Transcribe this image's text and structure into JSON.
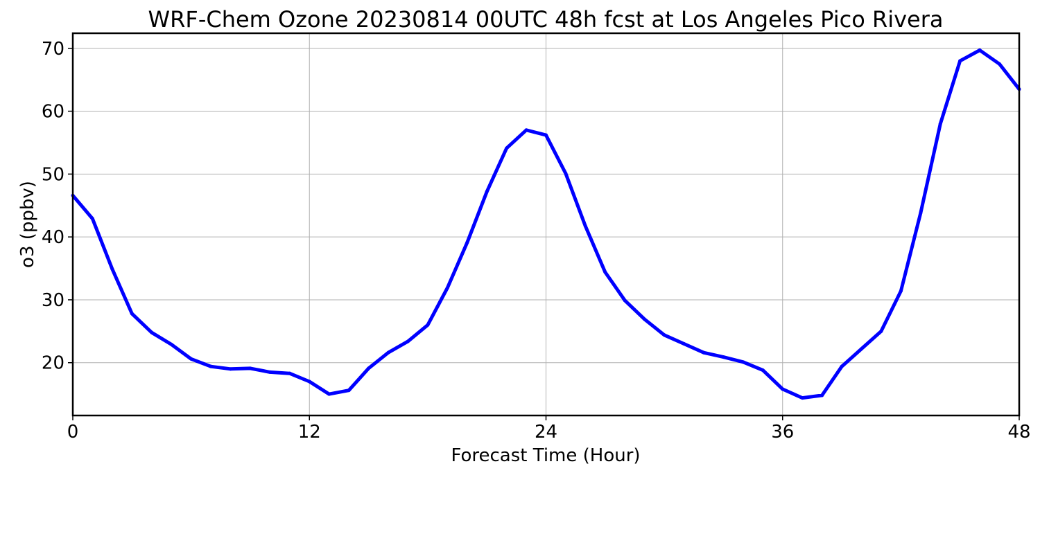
{
  "chart_data": {
    "type": "line",
    "title": "WRF-Chem Ozone  20230814 00UTC 48h fcst at Los Angeles Pico Rivera",
    "xlabel": "Forecast Time (Hour)",
    "ylabel": "o3  (ppbv)",
    "xlim": [
      0,
      48
    ],
    "ylim": [
      11.6,
      72.4
    ],
    "xticks": [
      0,
      12,
      24,
      36,
      48
    ],
    "yticks": [
      20,
      30,
      40,
      50,
      60,
      70
    ],
    "grid": true,
    "legend": "none",
    "series": [
      {
        "color": "#0000ff",
        "x": [
          0,
          1,
          2,
          3,
          4,
          5,
          6,
          7,
          8,
          9,
          10,
          11,
          12,
          13,
          14,
          15,
          16,
          17,
          18,
          19,
          20,
          21,
          22,
          23,
          24,
          25,
          26,
          27,
          28,
          29,
          30,
          31,
          32,
          33,
          34,
          35,
          36,
          37,
          38,
          39,
          40,
          41,
          42,
          43,
          44,
          45,
          46,
          47,
          48
        ],
        "values": [
          46.6,
          42.9,
          34.9,
          27.8,
          24.8,
          22.9,
          20.6,
          19.4,
          19.0,
          19.1,
          18.5,
          18.3,
          17.0,
          15.0,
          15.6,
          19.1,
          21.6,
          23.4,
          26.0,
          31.9,
          39.1,
          47.2,
          54.1,
          57.0,
          56.2,
          50.1,
          41.7,
          34.4,
          29.9,
          26.9,
          24.4,
          23.0,
          21.6,
          20.9,
          20.1,
          18.8,
          15.8,
          14.4,
          14.8,
          19.4,
          22.2,
          25.0,
          31.4,
          43.8,
          58.0,
          68.0,
          69.7,
          67.5,
          63.5
        ]
      }
    ]
  }
}
